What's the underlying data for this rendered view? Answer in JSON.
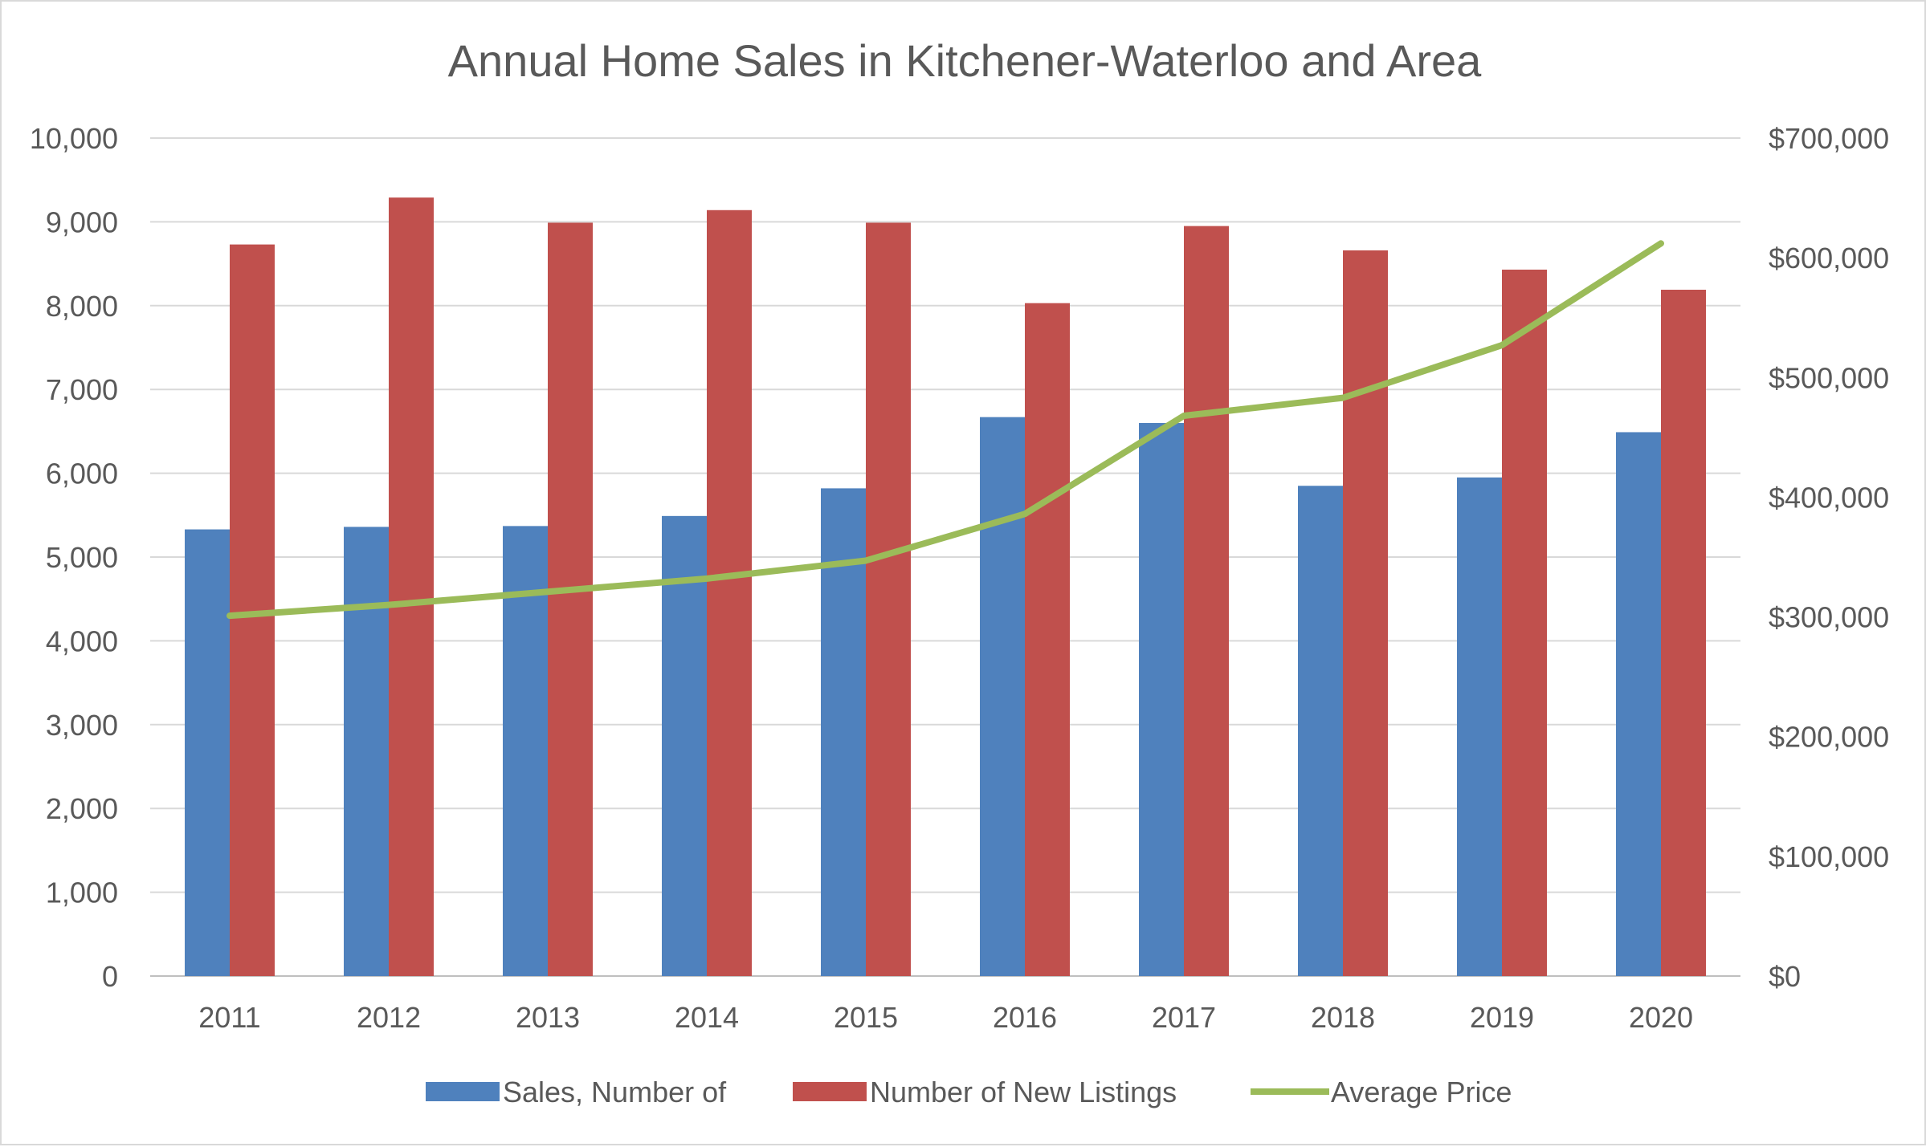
{
  "chart_data": {
    "type": "bar",
    "title": "Annual Home Sales in Kitchener-Waterloo and Area",
    "categories": [
      "2011",
      "2012",
      "2013",
      "2014",
      "2015",
      "2016",
      "2017",
      "2018",
      "2019",
      "2020"
    ],
    "series": [
      {
        "name": "Sales, Number of",
        "type": "bar",
        "axis": "left",
        "color": "#4f81bd",
        "values": [
          5330,
          5360,
          5370,
          5490,
          5820,
          6670,
          6600,
          5850,
          5950,
          6490
        ]
      },
      {
        "name": "Number of New Listings",
        "type": "bar",
        "axis": "left",
        "color": "#c0504d",
        "values": [
          8730,
          9290,
          8990,
          9140,
          8990,
          8030,
          8950,
          8660,
          8430,
          8190
        ]
      },
      {
        "name": "Average Price",
        "type": "line",
        "axis": "right",
        "color": "#9bbb59",
        "values": [
          301000,
          310000,
          321000,
          332000,
          347000,
          386000,
          468000,
          483000,
          527000,
          612000
        ]
      }
    ],
    "y_left": {
      "min": 0,
      "max": 10000,
      "ticks": [
        "0",
        "1,000",
        "2,000",
        "3,000",
        "4,000",
        "5,000",
        "6,000",
        "7,000",
        "8,000",
        "9,000",
        "10,000"
      ]
    },
    "y_right": {
      "min": 0,
      "max": 700000,
      "ticks": [
        "$0",
        "$100,000",
        "$200,000",
        "$300,000",
        "$400,000",
        "$500,000",
        "$600,000",
        "$700,000"
      ]
    },
    "grid": true,
    "legend_position": "bottom"
  }
}
